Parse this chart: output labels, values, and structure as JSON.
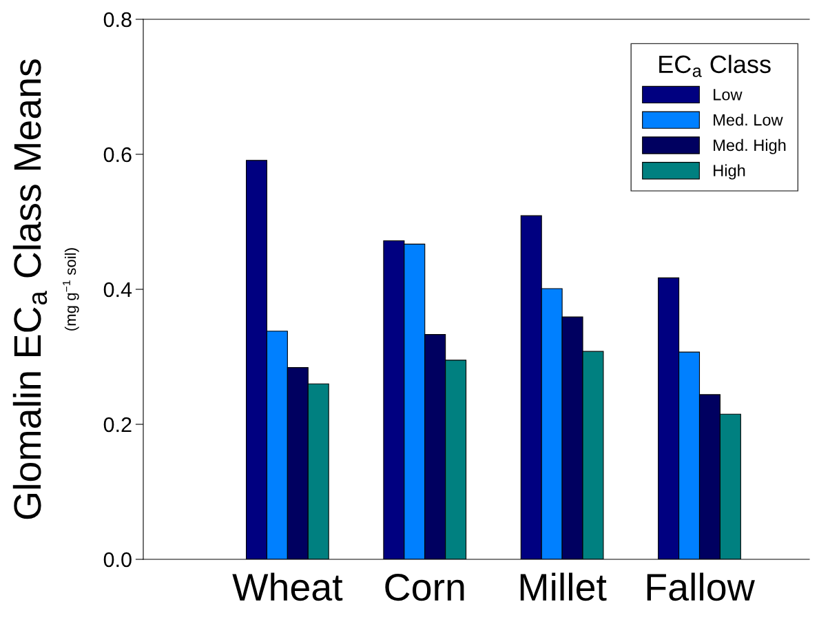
{
  "chart_data": {
    "type": "bar",
    "ylabel": "Glomalin EC$_{a}$ Class Means\n(mg g$^{−1}$ soil)",
    "legend_title": "EC$_{a}$ Class",
    "legend": "top right",
    "grid": false,
    "categories": [
      "Wheat",
      "Corn",
      "Millet",
      "Fallow"
    ],
    "ylim": [
      0,
      0.8
    ],
    "yticks": [
      {
        "value": 0,
        "label": "0.0"
      },
      0.2,
      0.4,
      0.6,
      0.8
    ],
    "series": [
      {
        "name": "Low",
        "color": "#000080",
        "values": [
          0.591,
          0.472,
          0.509,
          0.417
        ]
      },
      {
        "name": "Med. Low",
        "color": "#0080ff",
        "values": [
          0.338,
          0.467,
          0.401,
          0.307
        ]
      },
      {
        "name": "Med. High",
        "color": "#000060",
        "values": [
          0.284,
          0.333,
          0.359,
          0.244
        ]
      },
      {
        "name": "High",
        "color": "#008080",
        "values": [
          0.26,
          0.295,
          0.308,
          0.215
        ]
      }
    ]
  }
}
